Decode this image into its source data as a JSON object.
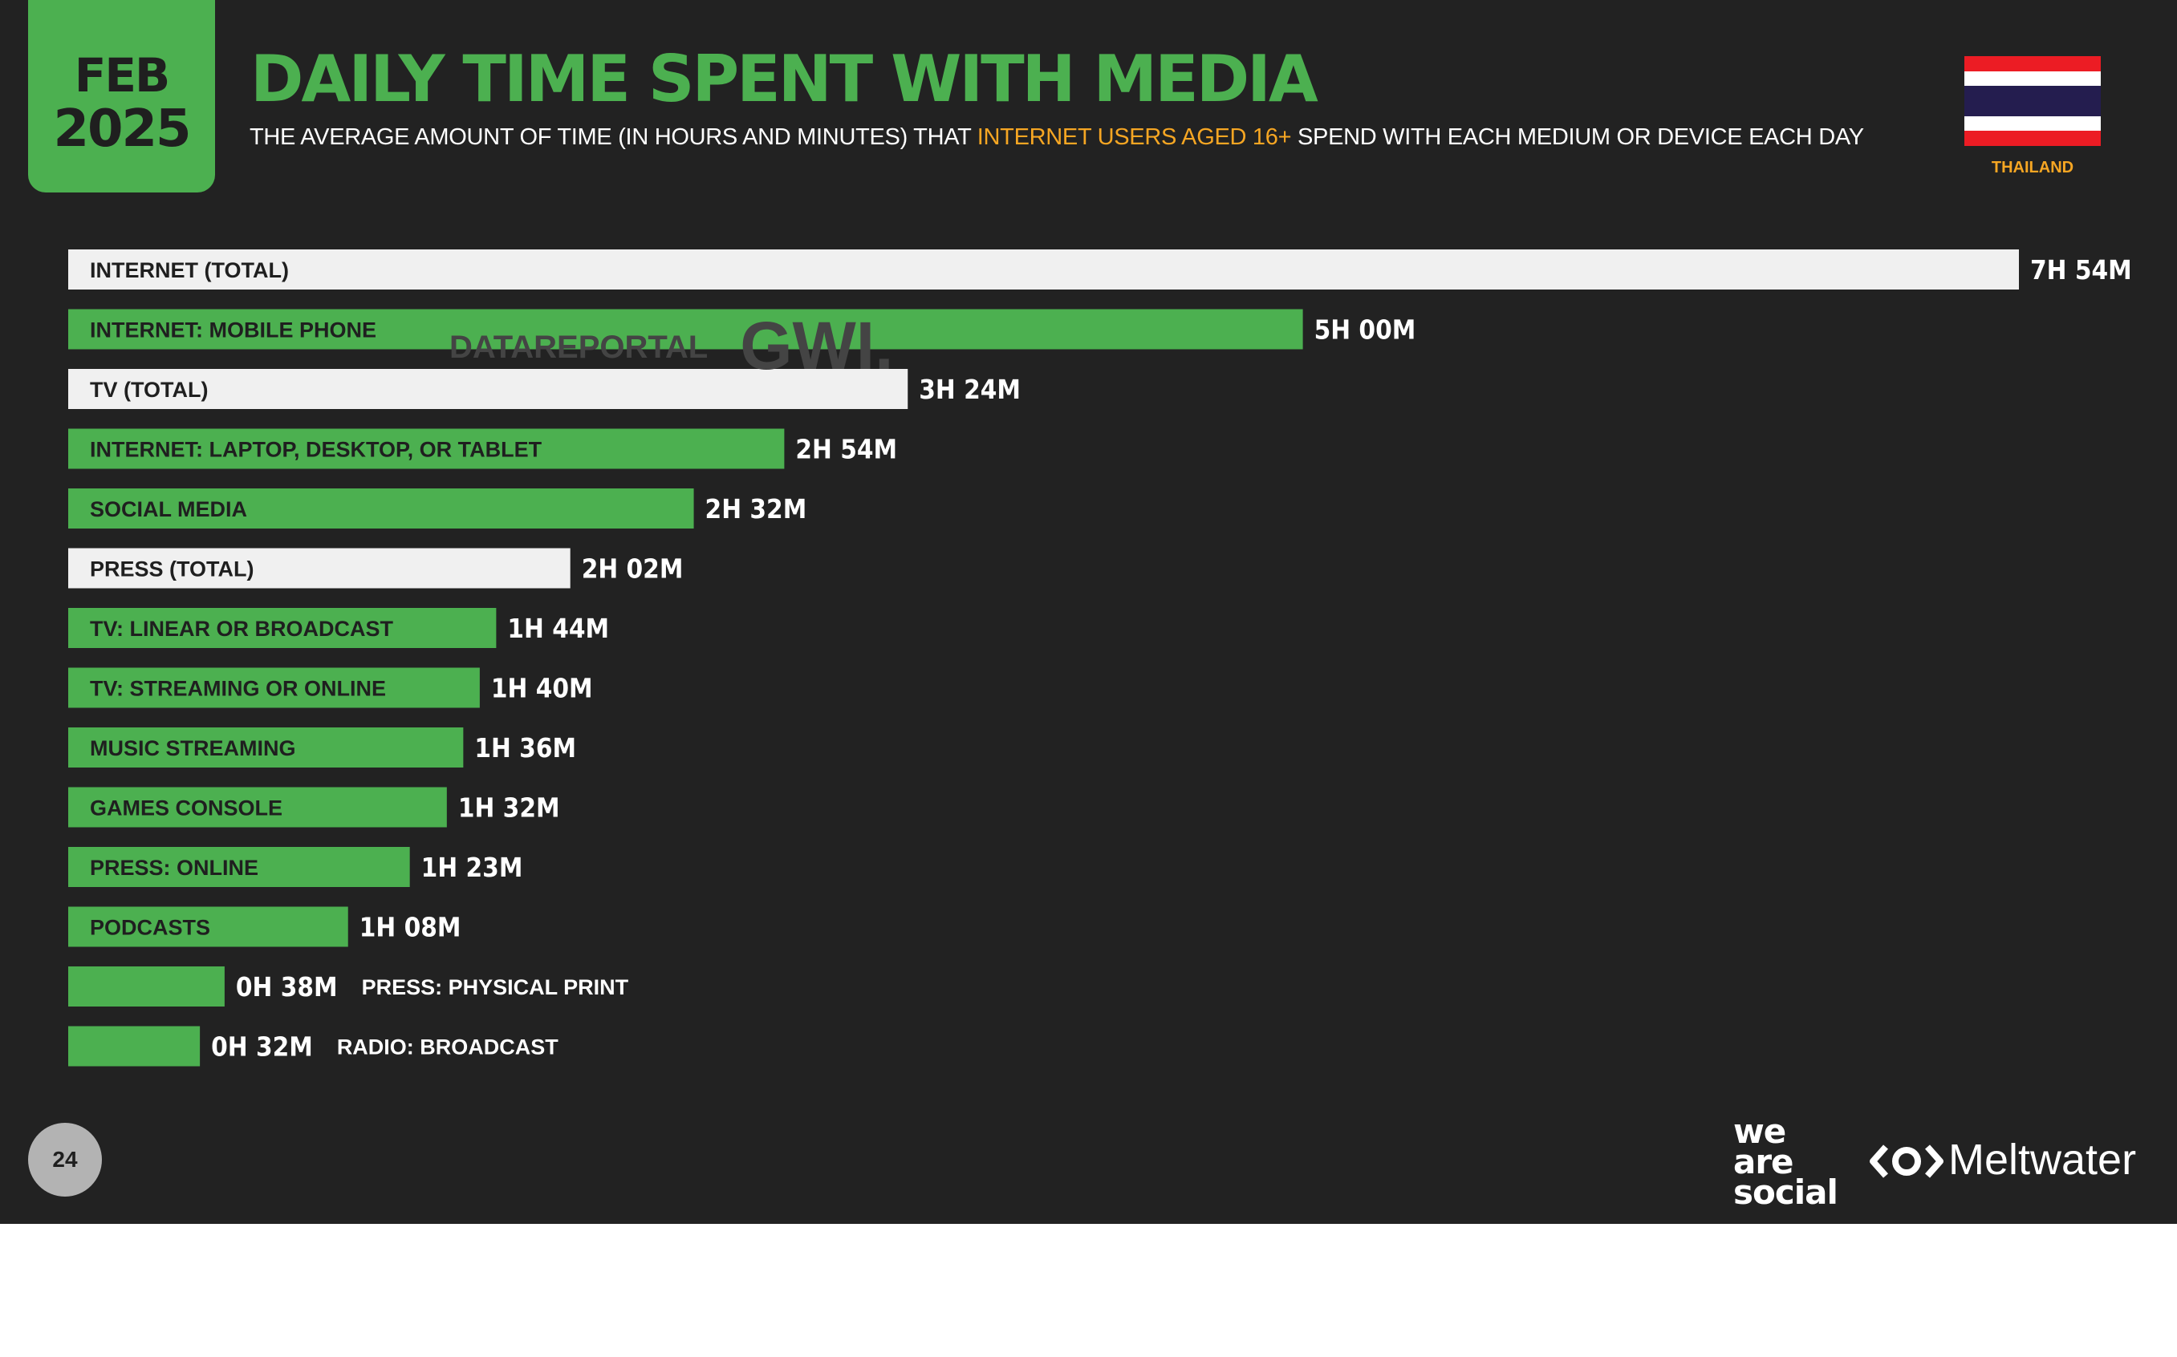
{
  "header": {
    "date_month": "FEB",
    "date_year": "2025",
    "title": "DAILY TIME SPENT WITH MEDIA",
    "subtitle_before": "THE AVERAGE AMOUNT OF TIME (IN HOURS AND MINUTES) THAT ",
    "subtitle_highlight": "INTERNET USERS AGED 16+",
    "subtitle_after": " SPEND WITH EACH MEDIUM OR DEVICE EACH DAY",
    "country": "THAILAND"
  },
  "flag": {
    "icon": "thailand-flag-icon",
    "colors": [
      "#ec1c24",
      "#ffffff",
      "#241d4f",
      "#ffffff",
      "#ec1c24"
    ]
  },
  "watermark": {
    "left": "DATAREPORTAL",
    "right": "GWI."
  },
  "colors": {
    "background": "#222222",
    "accent_green": "#4cb050",
    "total_bar": "#f0f0f0",
    "highlight_orange": "#f6a623"
  },
  "chart_data": {
    "type": "bar",
    "orientation": "horizontal",
    "unit": "minutes",
    "categories": [
      "INTERNET (TOTAL)",
      "INTERNET: MOBILE PHONE",
      "TV (TOTAL)",
      "INTERNET: LAPTOP, DESKTOP, OR TABLET",
      "SOCIAL MEDIA",
      "PRESS (TOTAL)",
      "TV: LINEAR OR BROADCAST",
      "TV: STREAMING OR ONLINE",
      "MUSIC STREAMING",
      "GAMES CONSOLE",
      "PRESS: ONLINE",
      "PODCASTS",
      "PRESS: PHYSICAL PRINT",
      "RADIO: BROADCAST"
    ],
    "values": [
      474,
      300,
      204,
      174,
      152,
      122,
      104,
      100,
      96,
      92,
      83,
      68,
      38,
      32
    ],
    "value_labels": [
      "7H 54M",
      "5H 00M",
      "3H 24M",
      "2H 54M",
      "2H 32M",
      "2H 02M",
      "1H 44M",
      "1H 40M",
      "1H 36M",
      "1H 32M",
      "1H 23M",
      "1H 08M",
      "0H 38M",
      "0H 32M"
    ],
    "kinds": [
      "total",
      "sub",
      "total",
      "sub",
      "sub",
      "total",
      "sub",
      "sub",
      "sub",
      "sub",
      "sub",
      "sub",
      "sub",
      "sub"
    ],
    "xlim": [
      0,
      474
    ],
    "grid": false,
    "legend": "none"
  },
  "footer": {
    "page_number": "24",
    "brand_left": [
      "we",
      "are",
      "social"
    ],
    "brand_right": "Meltwater"
  }
}
